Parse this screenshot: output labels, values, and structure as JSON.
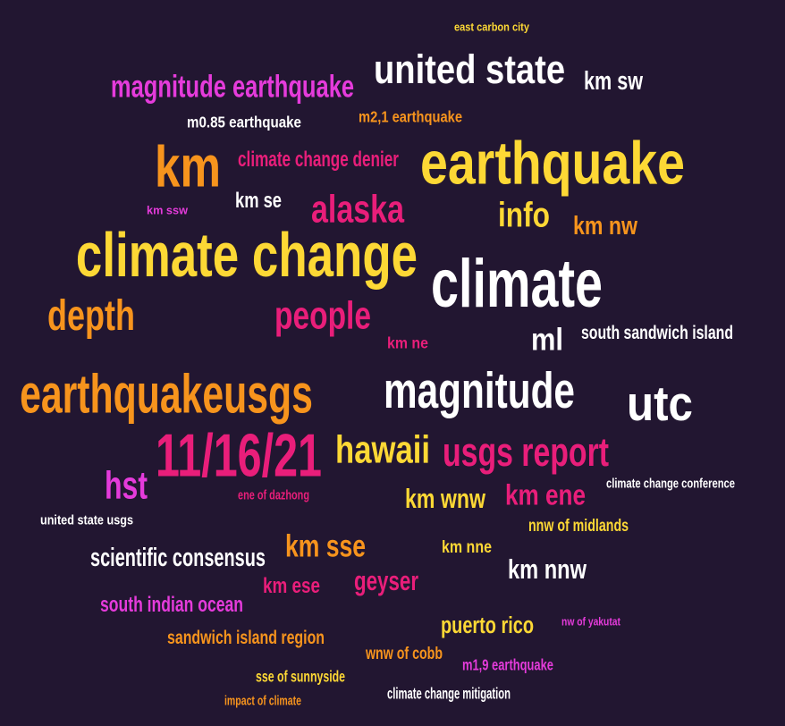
{
  "palette": {
    "background": "#221631",
    "white": "#ffffff",
    "yellow": "#fdd835",
    "orange": "#f7941d",
    "pink": "#e91e7a",
    "magenta": "#e53bdb"
  },
  "words": [
    {
      "text": "east carbon city",
      "color": "yellow"
    },
    {
      "text": "united state",
      "color": "white"
    },
    {
      "text": "km sw",
      "color": "white"
    },
    {
      "text": "magnitude earthquake",
      "color": "magenta"
    },
    {
      "text": "m0.85 earthquake",
      "color": "white"
    },
    {
      "text": "m2,1 earthquake",
      "color": "orange"
    },
    {
      "text": "km",
      "color": "orange"
    },
    {
      "text": "climate change denier",
      "color": "pink"
    },
    {
      "text": "earthquake",
      "color": "yellow"
    },
    {
      "text": "km ssw",
      "color": "magenta"
    },
    {
      "text": "km se",
      "color": "white"
    },
    {
      "text": "alaska",
      "color": "pink"
    },
    {
      "text": "info",
      "color": "yellow"
    },
    {
      "text": "km nw",
      "color": "orange"
    },
    {
      "text": "climate change",
      "color": "yellow"
    },
    {
      "text": "climate",
      "color": "white"
    },
    {
      "text": "depth",
      "color": "orange"
    },
    {
      "text": "people",
      "color": "pink"
    },
    {
      "text": "km ne",
      "color": "pink"
    },
    {
      "text": "ml",
      "color": "white"
    },
    {
      "text": "south sandwich island",
      "color": "white"
    },
    {
      "text": "earthquakeusgs",
      "color": "orange"
    },
    {
      "text": "magnitude",
      "color": "white"
    },
    {
      "text": "utc",
      "color": "white"
    },
    {
      "text": "11/16/21",
      "color": "pink"
    },
    {
      "text": "hawaii",
      "color": "yellow"
    },
    {
      "text": "usgs report",
      "color": "pink"
    },
    {
      "text": "hst",
      "color": "magenta"
    },
    {
      "text": "ene of dazhong",
      "color": "pink"
    },
    {
      "text": "km wnw",
      "color": "yellow"
    },
    {
      "text": "km ene",
      "color": "pink"
    },
    {
      "text": "climate change conference",
      "color": "white"
    },
    {
      "text": "united state usgs",
      "color": "white"
    },
    {
      "text": "nnw of midlands",
      "color": "yellow"
    },
    {
      "text": "scientific consensus",
      "color": "white"
    },
    {
      "text": "km sse",
      "color": "orange"
    },
    {
      "text": "km nne",
      "color": "yellow"
    },
    {
      "text": "km nnw",
      "color": "white"
    },
    {
      "text": "km ese",
      "color": "pink"
    },
    {
      "text": "geyser",
      "color": "pink"
    },
    {
      "text": "south indian ocean",
      "color": "magenta"
    },
    {
      "text": "puerto rico",
      "color": "yellow"
    },
    {
      "text": "nw of yakutat",
      "color": "magenta"
    },
    {
      "text": "sandwich island region",
      "color": "orange"
    },
    {
      "text": "wnw of cobb",
      "color": "orange"
    },
    {
      "text": "m1,9 earthquake",
      "color": "magenta"
    },
    {
      "text": "sse of sunnyside",
      "color": "yellow"
    },
    {
      "text": "impact of climate",
      "color": "orange"
    },
    {
      "text": "climate change mitigation",
      "color": "white"
    }
  ]
}
